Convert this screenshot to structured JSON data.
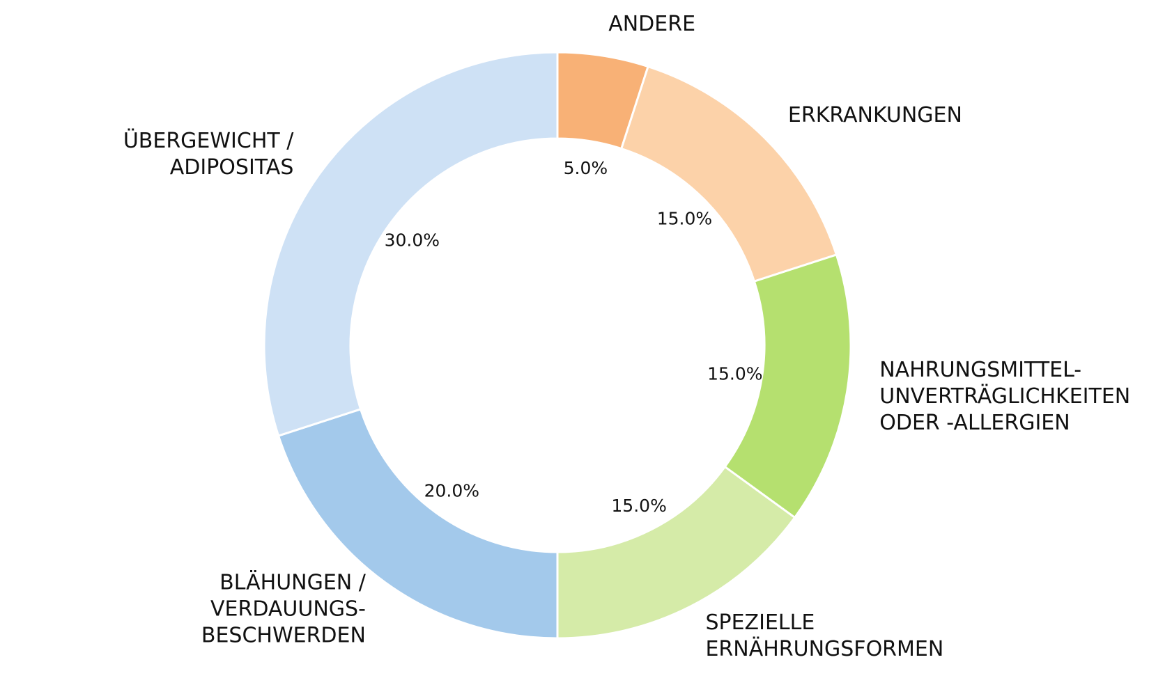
{
  "chart_data": {
    "type": "pie",
    "variant": "donut",
    "title": "",
    "start": "top",
    "direction": "clockwise",
    "slices": [
      {
        "label": [
          "ANDERE"
        ],
        "value": 5.0,
        "pct_label": "5.0%",
        "color": "#f8b176"
      },
      {
        "label": [
          "ERKRANKUNGEN"
        ],
        "value": 15.0,
        "pct_label": "15.0%",
        "color": "#fcd2a9"
      },
      {
        "label": [
          "NAHRUNGSMITTEL-",
          "UNVERTRÄGLICHKEITEN",
          "ODER -ALLERGIEN"
        ],
        "value": 15.0,
        "pct_label": "15.0%",
        "color": "#b5e06f"
      },
      {
        "label": [
          "SPEZIELLE",
          "ERNÄHRUNGSFORMEN"
        ],
        "value": 15.0,
        "pct_label": "15.0%",
        "color": "#d5eba8"
      },
      {
        "label": [
          "BLÄHUNGEN /",
          "VERDAUUNGS-",
          "BESCHWERDEN"
        ],
        "value": 20.0,
        "pct_label": "20.0%",
        "color": "#a3c9eb"
      },
      {
        "label": [
          "ÜBERGEWICHT /",
          "ADIPOSITAS"
        ],
        "value": 30.0,
        "pct_label": "30.0%",
        "color": "#cee1f5"
      }
    ]
  }
}
